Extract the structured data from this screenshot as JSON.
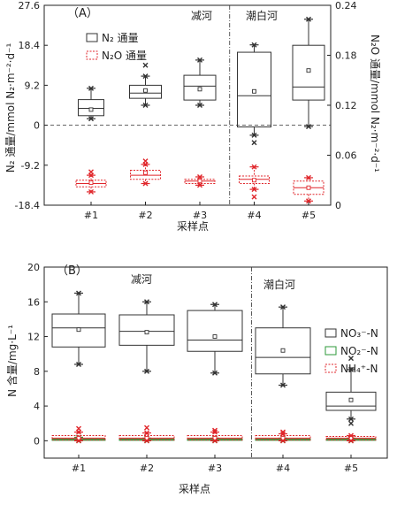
{
  "chart_data": [
    {
      "panel_label": "（A）",
      "type": "box",
      "regions": [
        "减河",
        "潮白河"
      ],
      "categories": [
        "#1",
        "#2",
        "#3",
        "#4",
        "#5"
      ],
      "xlabel": "采样点",
      "ylabel_left": "N₂ 通量/mmol N₂·m⁻²·d⁻¹",
      "ylabel_right": "N₂O 通量/mmol N₂·m⁻²·d⁻¹",
      "ylim_left": [
        -18.4,
        27.6
      ],
      "yticks_left": [
        "27.6",
        "18.4",
        "9.2",
        "0",
        "-9.2",
        "-18.4"
      ],
      "ylim_right": [
        0,
        0.24
      ],
      "yticks_right": [
        "0.24",
        "0.18",
        "0.12",
        "0.06",
        "0"
      ],
      "legend": {
        "position": "top-left",
        "entries": [
          "N₂ 通量",
          "N₂O 通量"
        ]
      },
      "series": [
        {
          "name": "N₂ 通量",
          "axis": "left",
          "color": "#333333",
          "boxes": [
            {
              "min": 1.5,
              "q1": 2.2,
              "median": 3.9,
              "q3": 5.9,
              "max": 8.5,
              "mean": 3.6,
              "outliers": []
            },
            {
              "min": 4.6,
              "q1": 6.2,
              "median": 7.4,
              "q3": 9.2,
              "max": 11.3,
              "mean": 8.0,
              "outliers": [
                13.8
              ]
            },
            {
              "min": 4.6,
              "q1": 5.8,
              "median": 9.0,
              "q3": 11.5,
              "max": 15.0,
              "mean": 8.3,
              "outliers": []
            },
            {
              "min": -2.3,
              "q1": -0.4,
              "median": 6.8,
              "q3": 16.8,
              "max": 18.5,
              "mean": 7.8,
              "outliers": [
                -4.0
              ]
            },
            {
              "min": -0.3,
              "q1": 5.8,
              "median": 8.8,
              "q3": 18.4,
              "max": 24.4,
              "mean": 12.6,
              "outliers": []
            }
          ]
        },
        {
          "name": "N₂O 通量",
          "axis": "right",
          "color": "#e0262b",
          "boxes": [
            {
              "min": 0.016,
              "q1": 0.022,
              "median": 0.026,
              "q3": 0.03,
              "max": 0.036,
              "mean": 0.027,
              "outliers": [
                0.04
              ]
            },
            {
              "min": 0.026,
              "q1": 0.031,
              "median": 0.036,
              "q3": 0.042,
              "max": 0.049,
              "mean": 0.039,
              "outliers": [
                0.053
              ]
            },
            {
              "min": 0.024,
              "q1": 0.026,
              "median": 0.029,
              "q3": 0.031,
              "max": 0.034,
              "mean": 0.029,
              "outliers": []
            },
            {
              "min": 0.019,
              "q1": 0.026,
              "median": 0.031,
              "q3": 0.035,
              "max": 0.046,
              "mean": 0.03,
              "outliers": [
                0.01
              ]
            },
            {
              "min": 0.005,
              "q1": 0.013,
              "median": 0.021,
              "q3": 0.029,
              "max": 0.033,
              "mean": 0.021,
              "outliers": []
            }
          ]
        }
      ]
    },
    {
      "panel_label": "（B）",
      "type": "box",
      "regions": [
        "减河",
        "潮白河"
      ],
      "categories": [
        "#1",
        "#2",
        "#3",
        "#4",
        "#5"
      ],
      "xlabel": "采样点",
      "ylabel": "N 含量/mg·L⁻¹",
      "ylim": [
        -2,
        20
      ],
      "yticks": [
        "20",
        "16",
        "12",
        "8",
        "4",
        "0"
      ],
      "legend": {
        "position": "right",
        "entries": [
          "NO₃⁻-N",
          "NO₂⁻-N",
          "NH₄⁺-N"
        ]
      },
      "series": [
        {
          "name": "NO₃⁻-N",
          "color": "#333333",
          "boxes": [
            {
              "min": 8.8,
              "q1": 10.8,
              "median": 13.0,
              "q3": 14.6,
              "max": 17.0,
              "mean": 12.8,
              "outliers": []
            },
            {
              "min": 8.0,
              "q1": 11.0,
              "median": 12.6,
              "q3": 14.5,
              "max": 16.0,
              "mean": 12.5,
              "outliers": []
            },
            {
              "min": 7.8,
              "q1": 10.3,
              "median": 11.6,
              "q3": 15.0,
              "max": 15.7,
              "mean": 12.0,
              "outliers": []
            },
            {
              "min": 6.4,
              "q1": 7.7,
              "median": 9.6,
              "q3": 13.0,
              "max": 15.4,
              "mean": 10.4,
              "outliers": []
            },
            {
              "min": 2.5,
              "q1": 3.5,
              "median": 4.0,
              "q3": 5.6,
              "max": 8.2,
              "mean": 4.7,
              "outliers": [
                9.5,
                2.0
              ]
            }
          ]
        },
        {
          "name": "NO₂⁻-N",
          "color": "#2e9a3a",
          "boxes": [
            {
              "min": 0.0,
              "q1": 0.05,
              "median": 0.1,
              "q3": 0.2,
              "max": 0.4,
              "mean": 0.1,
              "outliers": []
            },
            {
              "min": 0.0,
              "q1": 0.05,
              "median": 0.1,
              "q3": 0.2,
              "max": 0.3,
              "mean": 0.1,
              "outliers": []
            },
            {
              "min": 0.0,
              "q1": 0.05,
              "median": 0.1,
              "q3": 0.2,
              "max": 0.3,
              "mean": 0.1,
              "outliers": []
            },
            {
              "min": 0.0,
              "q1": 0.05,
              "median": 0.1,
              "q3": 0.2,
              "max": 0.3,
              "mean": 0.1,
              "outliers": []
            },
            {
              "min": 0.0,
              "q1": 0.05,
              "median": 0.1,
              "q3": 0.2,
              "max": 0.3,
              "mean": 0.1,
              "outliers": []
            }
          ]
        },
        {
          "name": "NH₄⁺-N",
          "color": "#e0262b",
          "boxes": [
            {
              "min": 0.0,
              "q1": 0.1,
              "median": 0.3,
              "q3": 0.6,
              "max": 1.0,
              "mean": 0.3,
              "outliers": [
                1.4
              ]
            },
            {
              "min": 0.0,
              "q1": 0.1,
              "median": 0.3,
              "q3": 0.6,
              "max": 0.9,
              "mean": 0.3,
              "outliers": [
                1.5
              ]
            },
            {
              "min": 0.0,
              "q1": 0.1,
              "median": 0.3,
              "q3": 0.6,
              "max": 1.0,
              "mean": 0.3,
              "outliers": [
                1.2
              ]
            },
            {
              "min": 0.0,
              "q1": 0.1,
              "median": 0.3,
              "q3": 0.6,
              "max": 0.8,
              "mean": 0.3,
              "outliers": [
                1.0
              ]
            },
            {
              "min": 0.0,
              "q1": 0.1,
              "median": 0.3,
              "q3": 0.5,
              "max": 0.6,
              "mean": 0.3,
              "outliers": []
            }
          ]
        }
      ]
    }
  ]
}
